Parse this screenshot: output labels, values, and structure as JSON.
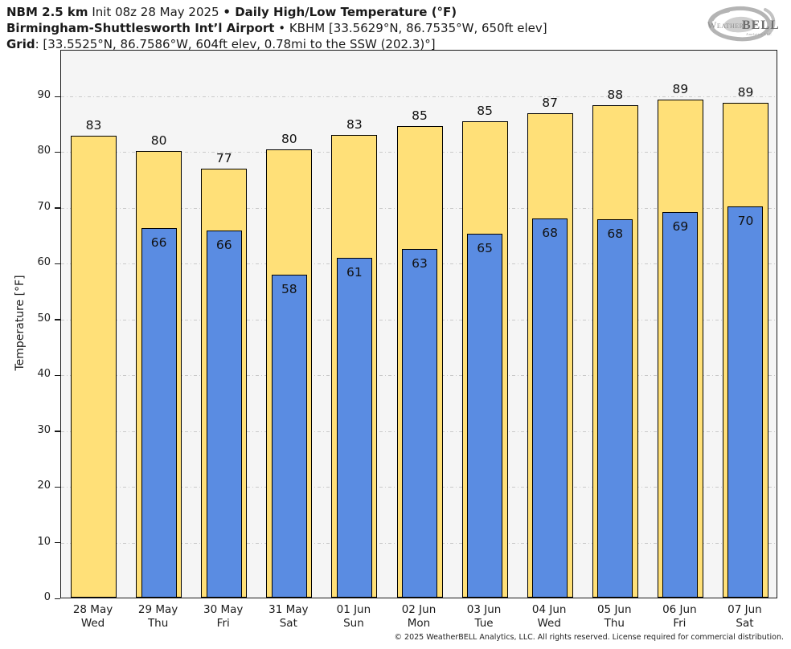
{
  "header": {
    "line1": {
      "model": "NBM 2.5 km",
      "init": " Init 08z 28 May 2025 ",
      "bullet": "•",
      "product": " Daily High/Low Temperature (°F)"
    },
    "line2": {
      "station": "Birmingham-Shuttlesworth Int’l Airport",
      "bullet": " • ",
      "info": "KBHM [33.5629°N, 86.7535°W, 650ft elev]"
    },
    "line3": {
      "label": "Grid",
      "info": ": [33.5525°N, 86.7586°W, 604ft elev, 0.78mi to the SSW (202.3)°]"
    }
  },
  "logo": {
    "weather": "Weather",
    "bell": "BELL",
    "sub": "Analytics LLC"
  },
  "chart_data": {
    "type": "bar",
    "title": "NBM 2.5 km Daily High/Low Temperature (°F) — KBHM",
    "ylabel": "Temperature [°F]",
    "ylim": [
      0,
      98.4
    ],
    "yticks": [
      0,
      10,
      20,
      30,
      40,
      50,
      60,
      70,
      80,
      90
    ],
    "grid": "horizontal dash-dot",
    "legend": "none",
    "categories": [
      {
        "date": "28 May",
        "day": "Wed"
      },
      {
        "date": "29 May",
        "day": "Thu"
      },
      {
        "date": "30 May",
        "day": "Fri"
      },
      {
        "date": "31 May",
        "day": "Sat"
      },
      {
        "date": "01 Jun",
        "day": "Sun"
      },
      {
        "date": "02 Jun",
        "day": "Mon"
      },
      {
        "date": "03 Jun",
        "day": "Tue"
      },
      {
        "date": "04 Jun",
        "day": "Wed"
      },
      {
        "date": "05 Jun",
        "day": "Thu"
      },
      {
        "date": "06 Jun",
        "day": "Fri"
      },
      {
        "date": "07 Jun",
        "day": "Sat"
      }
    ],
    "series": [
      {
        "name": "High",
        "color": "#FFE078",
        "values": [
          82.8,
          80.1,
          76.9,
          80.4,
          82.9,
          84.5,
          85.4,
          86.8,
          88.3,
          89.3,
          88.7
        ],
        "labels": [
          "83",
          "80",
          "77",
          "80",
          "83",
          "85",
          "85",
          "87",
          "88",
          "89",
          "89"
        ]
      },
      {
        "name": "Low",
        "color": "#5A8CE2",
        "values": [
          null,
          66.2,
          65.8,
          57.9,
          60.9,
          62.5,
          65.2,
          67.9,
          67.8,
          69.1,
          70.1
        ],
        "labels": [
          null,
          "66",
          "66",
          "58",
          "61",
          "63",
          "65",
          "68",
          "68",
          "69",
          "70"
        ]
      }
    ],
    "plot_bg": "#f5f5f5",
    "bar_border": "#000000",
    "gridline_color": "#c9c9c9"
  },
  "footer": {
    "copyright": "© 2025 WeatherBELL Analytics, LLC. All rights reserved. License required for commercial distribution."
  }
}
